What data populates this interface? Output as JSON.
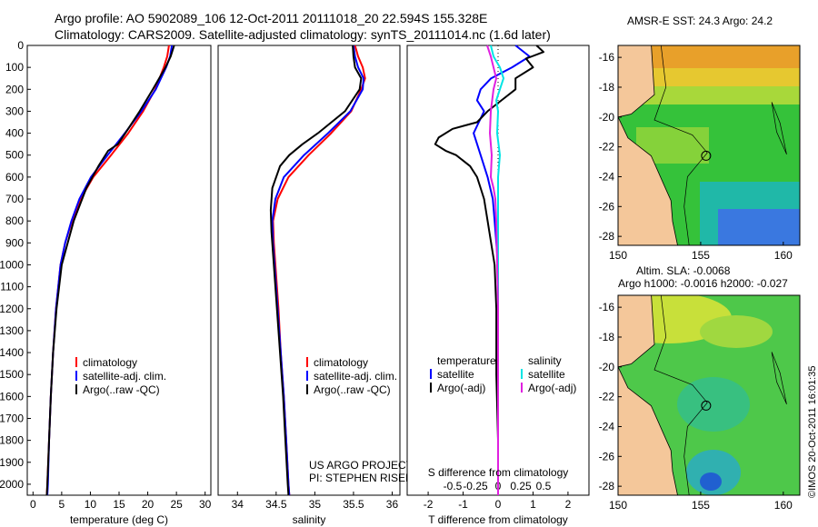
{
  "header": {
    "line1": "Argo profile: AO 5902089_106 12-Oct-2011 20111018_20 22.594S 155.328E",
    "line2": "Climatology: CARS2009. Satellite-adjusted climatology: synTS_20111014.nc (1.6d later)"
  },
  "colors": {
    "climatology": "#ff0000",
    "satellite": "#0000ff",
    "argo": "#000000",
    "salinity_satellite": "#00e5e5",
    "salinity_argo": "#e020e0",
    "land": "#f4c79a"
  },
  "chart_data": [
    {
      "type": "line",
      "name": "temperature-profile",
      "xlabel": "temperature (deg C)",
      "xlim": [
        -1,
        31
      ],
      "ylim": [
        2050,
        0
      ],
      "xticks": [
        0,
        5,
        10,
        15,
        20,
        25,
        30
      ],
      "xtick_labels": [
        "0",
        "5",
        "10",
        "15",
        "20",
        "25",
        "30"
      ],
      "yticks": [
        0,
        100,
        200,
        300,
        400,
        500,
        600,
        700,
        800,
        900,
        1000,
        1100,
        1200,
        1300,
        1400,
        1500,
        1600,
        1700,
        1800,
        1900,
        2000
      ],
      "ytick_labels": [
        "0",
        "100",
        "200",
        "300",
        "400",
        "500",
        "600",
        "700",
        "800",
        "900",
        "1000",
        "1100",
        "1200",
        "1300",
        "1400",
        "1500",
        "1600",
        "1700",
        "1800",
        "1900",
        "2000"
      ],
      "legend": [
        "climatology",
        "satellite-adj. clim.",
        "Argo(..raw -QC)"
      ],
      "series": [
        {
          "name": "climatology",
          "color": "#ff0000",
          "y": [
            0,
            50,
            100,
            200,
            300,
            400,
            500,
            600,
            700,
            800,
            900,
            1000,
            1200,
            1400,
            1600,
            1800,
            2000,
            2050
          ],
          "x": [
            23.7,
            23.4,
            22.8,
            21.3,
            19.2,
            16.6,
            13.6,
            10.5,
            8.3,
            6.8,
            5.6,
            4.8,
            4.0,
            3.5,
            3.1,
            2.8,
            2.5,
            2.4
          ]
        },
        {
          "name": "satellite-adj. clim.",
          "color": "#0000ff",
          "y": [
            0,
            50,
            100,
            200,
            300,
            400,
            500,
            600,
            700,
            800,
            900,
            1000,
            1200,
            1400,
            1600,
            1800,
            2000,
            2050
          ],
          "x": [
            24.2,
            23.9,
            23.2,
            21.4,
            18.9,
            16.0,
            13.0,
            10.1,
            8.1,
            6.7,
            5.6,
            4.8,
            4.0,
            3.5,
            3.1,
            2.8,
            2.6,
            2.5
          ]
        },
        {
          "name": "Argo(..raw -QC)",
          "color": "#000000",
          "y": [
            0,
            50,
            100,
            200,
            300,
            400,
            450,
            480,
            550,
            650,
            800,
            1000,
            1200,
            1400,
            1600,
            1800,
            2000,
            2050
          ],
          "x": [
            24.6,
            24.0,
            23.1,
            20.9,
            18.6,
            16.1,
            14.8,
            13.1,
            11.4,
            9.3,
            7.1,
            5.0,
            4.1,
            3.5,
            3.1,
            2.8,
            2.5,
            2.4
          ]
        }
      ]
    },
    {
      "type": "line",
      "name": "salinity-profile",
      "xlabel": "salinity",
      "xlim": [
        33.75,
        36.1
      ],
      "ylim": [
        2050,
        0
      ],
      "xticks": [
        34,
        34.5,
        35,
        35.5,
        36
      ],
      "xtick_labels": [
        "34",
        "34.5",
        "35",
        "35.5",
        "36"
      ],
      "legend": [
        "climatology",
        "satellite-adj. clim.",
        "Argo(..raw -QC)"
      ],
      "annotation": [
        "US ARGO PROJECT",
        "PI: STEPHEN RISER"
      ],
      "series": [
        {
          "name": "climatology",
          "color": "#ff0000",
          "y": [
            0,
            50,
            100,
            150,
            200,
            300,
            400,
            500,
            600,
            700,
            800,
            900,
            1000,
            1200,
            1400,
            1600,
            1800,
            2000,
            2050
          ],
          "x": [
            35.52,
            35.56,
            35.62,
            35.65,
            35.6,
            35.47,
            35.21,
            34.92,
            34.66,
            34.52,
            34.46,
            34.47,
            34.49,
            34.53,
            34.56,
            34.6,
            34.63,
            34.66,
            34.67
          ]
        },
        {
          "name": "satellite-adj. clim.",
          "color": "#0000ff",
          "y": [
            0,
            50,
            100,
            150,
            200,
            300,
            400,
            500,
            600,
            700,
            800,
            900,
            1000,
            1200,
            1400,
            1600,
            1800,
            2000,
            2050
          ],
          "x": [
            35.5,
            35.52,
            35.56,
            35.63,
            35.62,
            35.46,
            35.17,
            34.86,
            34.6,
            34.49,
            34.45,
            34.46,
            34.48,
            34.52,
            34.56,
            34.6,
            34.63,
            34.66,
            34.67
          ]
        },
        {
          "name": "Argo(..raw -QC)",
          "color": "#000000",
          "y": [
            0,
            50,
            100,
            150,
            200,
            300,
            400,
            450,
            500,
            550,
            650,
            750,
            850,
            1000,
            1200,
            1400,
            1600,
            1800,
            2000,
            2050
          ],
          "x": [
            35.49,
            35.5,
            35.52,
            35.6,
            35.58,
            35.39,
            35.04,
            34.84,
            34.67,
            34.55,
            34.45,
            34.43,
            34.44,
            34.47,
            34.51,
            34.55,
            34.59,
            34.62,
            34.65,
            34.66
          ]
        }
      ]
    },
    {
      "type": "line",
      "name": "difference-profile",
      "xlabel": "T difference from climatology",
      "xlabel2": "S difference from climatology",
      "xlim": [
        -2.6,
        2.6
      ],
      "ylim": [
        2050,
        0
      ],
      "xticks": [
        -2,
        -1,
        0,
        1,
        2
      ],
      "xtick_labels": [
        "-2",
        "-1",
        "0",
        "1",
        "2"
      ],
      "sticks": [
        -0.5,
        -0.25,
        0,
        0.25,
        0.5
      ],
      "stick_labels": [
        "-0.5",
        "-0.25",
        "0",
        "0.25",
        "0.5"
      ],
      "legend_temperature": [
        "temperature",
        "satellite",
        "Argo(-adj)"
      ],
      "legend_salinity": [
        "salinity",
        "satellite",
        "Argo(-adj)"
      ],
      "series": [
        {
          "name": "T satellite",
          "color": "#0000ff",
          "y": [
            0,
            50,
            100,
            150,
            200,
            250,
            300,
            350,
            400,
            500,
            600,
            700,
            800,
            900,
            1000
          ],
          "x": [
            0.5,
            0.9,
            0.4,
            -0.2,
            -0.5,
            -0.6,
            -0.4,
            -0.55,
            -0.7,
            -0.5,
            -0.3,
            -0.15,
            -0.1,
            -0.05,
            0.0
          ]
        },
        {
          "name": "T Argo(-adj)",
          "color": "#000000",
          "y": [
            0,
            30,
            60,
            100,
            150,
            200,
            250,
            300,
            350,
            380,
            420,
            450,
            480,
            500,
            550,
            600,
            650,
            700,
            800,
            1000,
            1200,
            1500,
            1800,
            2000,
            2050
          ],
          "x": [
            1.1,
            1.3,
            0.8,
            1.0,
            0.5,
            0.5,
            0.1,
            -0.3,
            -0.6,
            -1.3,
            -1.7,
            -1.8,
            -1.5,
            -1.2,
            -0.8,
            -0.6,
            -0.5,
            -0.4,
            -0.3,
            -0.1,
            -0.05,
            -0.05,
            0.0,
            0.0,
            0.0
          ]
        },
        {
          "name": "S satellite",
          "color": "#00e5e5",
          "y": [
            0,
            50,
            100,
            150,
            200,
            250,
            300,
            400,
            500,
            600,
            700,
            800,
            1000,
            1200,
            1500,
            1800,
            2000,
            2050
          ],
          "x": [
            -0.08,
            -0.05,
            0.02,
            0.06,
            0.02,
            -0.02,
            0.0,
            -0.01,
            0.02,
            0.0,
            0.0,
            0.0,
            0.0,
            0.0,
            0.0,
            0.0,
            0.0,
            0.0
          ]
        },
        {
          "name": "S Argo(-adj)",
          "color": "#e020e0",
          "y": [
            0,
            50,
            100,
            150,
            200,
            300,
            400,
            500,
            600,
            650,
            700,
            800,
            1000,
            1200,
            1500,
            1800,
            2000,
            2050
          ],
          "x": [
            -0.12,
            -0.08,
            -0.05,
            -0.02,
            -0.05,
            -0.08,
            -0.09,
            -0.07,
            -0.08,
            -0.05,
            -0.03,
            -0.02,
            -0.01,
            0.0,
            0.0,
            0.0,
            0.0,
            0.0
          ]
        }
      ]
    },
    {
      "type": "heatmap",
      "name": "sst-map",
      "title": "AMSR-E SST: 24.3 Argo: 24.2",
      "xlim": [
        150,
        161
      ],
      "ylim": [
        -28.6,
        -15.2
      ],
      "xticks": [
        150,
        155,
        160
      ],
      "xtick_labels": [
        "150",
        "155",
        "160"
      ],
      "yticks": [
        -16,
        -18,
        -20,
        -22,
        -24,
        -26,
        -28
      ],
      "ytick_labels": [
        "-16",
        "-18",
        "-20",
        "-22",
        "-24",
        "-26",
        "-28"
      ],
      "float_position": [
        155.328,
        -22.594
      ]
    },
    {
      "type": "heatmap",
      "name": "sla-map",
      "title": "Altim. SLA: -0.0068",
      "subtitle": "Argo h1000: -0.0016 h2000: -0.027",
      "xlim": [
        150,
        161
      ],
      "ylim": [
        -28.6,
        -15.2
      ],
      "xticks": [
        150,
        155,
        160
      ],
      "xtick_labels": [
        "150",
        "155",
        "160"
      ],
      "yticks": [
        -16,
        -18,
        -20,
        -22,
        -24,
        -26,
        -28
      ],
      "ytick_labels": [
        "-16",
        "-18",
        "-20",
        "-22",
        "-24",
        "-26",
        "-28"
      ],
      "float_position": [
        155.328,
        -22.594
      ]
    }
  ],
  "credit": "©IMOS 20-Oct-2011 16:01:35"
}
